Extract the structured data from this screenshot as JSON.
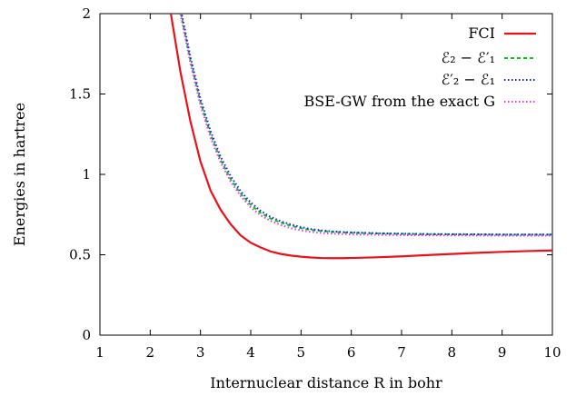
{
  "chart_data": {
    "type": "line",
    "xlabel": "Internuclear distance R in bohr",
    "ylabel": "Energies in hartree",
    "xlim": [
      1,
      10
    ],
    "ylim": [
      0,
      2
    ],
    "xticks": [
      "1",
      "2",
      "3",
      "4",
      "5",
      "6",
      "7",
      "8",
      "9",
      "10"
    ],
    "yticks": [
      "0",
      "0.5",
      "1",
      "1.5",
      "2"
    ],
    "grid": false,
    "legend_position": "top-right",
    "x": [
      2.4,
      2.6,
      2.8,
      3.0,
      3.2,
      3.4,
      3.6,
      3.8,
      4.0,
      4.2,
      4.4,
      4.6,
      4.8,
      5.0,
      5.2,
      5.4,
      5.6,
      5.8,
      6.0,
      6.5,
      7.0,
      7.5,
      8.0,
      8.5,
      9.0,
      9.5,
      10.0
    ],
    "series": [
      {
        "name": "FCI",
        "color": "#e8121b",
        "style": "solid",
        "values": [
          2.02,
          1.64,
          1.33,
          1.08,
          0.9,
          0.78,
          0.69,
          0.62,
          0.575,
          0.545,
          0.52,
          0.505,
          0.495,
          0.488,
          0.483,
          0.48,
          0.479,
          0.479,
          0.48,
          0.484,
          0.49,
          0.498,
          0.505,
          0.512,
          0.518,
          0.523,
          0.527
        ]
      },
      {
        "name": "ℰ₂ − ℰ′₁",
        "color": "#00cc00",
        "style": "dashed",
        "values": [
          2.35,
          2.02,
          1.71,
          1.45,
          1.25,
          1.09,
          0.97,
          0.88,
          0.81,
          0.76,
          0.725,
          0.7,
          0.68,
          0.665,
          0.655,
          0.648,
          0.643,
          0.64,
          0.637,
          0.633,
          0.63,
          0.628,
          0.627,
          0.626,
          0.625,
          0.625,
          0.625
        ]
      },
      {
        "name": "ℰ′₂ − ℰ₁",
        "color": "#1a1aff",
        "style": "dotted",
        "values": [
          2.37,
          2.04,
          1.73,
          1.47,
          1.27,
          1.11,
          0.99,
          0.895,
          0.825,
          0.772,
          0.735,
          0.708,
          0.688,
          0.672,
          0.66,
          0.652,
          0.646,
          0.642,
          0.639,
          0.634,
          0.631,
          0.629,
          0.628,
          0.627,
          0.626,
          0.626,
          0.626
        ]
      },
      {
        "name": "BSE-GW from the exact G",
        "color": "#ee33ee",
        "style": "dotted",
        "values": [
          2.33,
          2.0,
          1.69,
          1.43,
          1.23,
          1.075,
          0.955,
          0.865,
          0.795,
          0.745,
          0.71,
          0.685,
          0.665,
          0.652,
          0.642,
          0.636,
          0.632,
          0.629,
          0.627,
          0.624,
          0.622,
          0.621,
          0.62,
          0.62,
          0.619,
          0.619,
          0.619
        ]
      }
    ]
  }
}
